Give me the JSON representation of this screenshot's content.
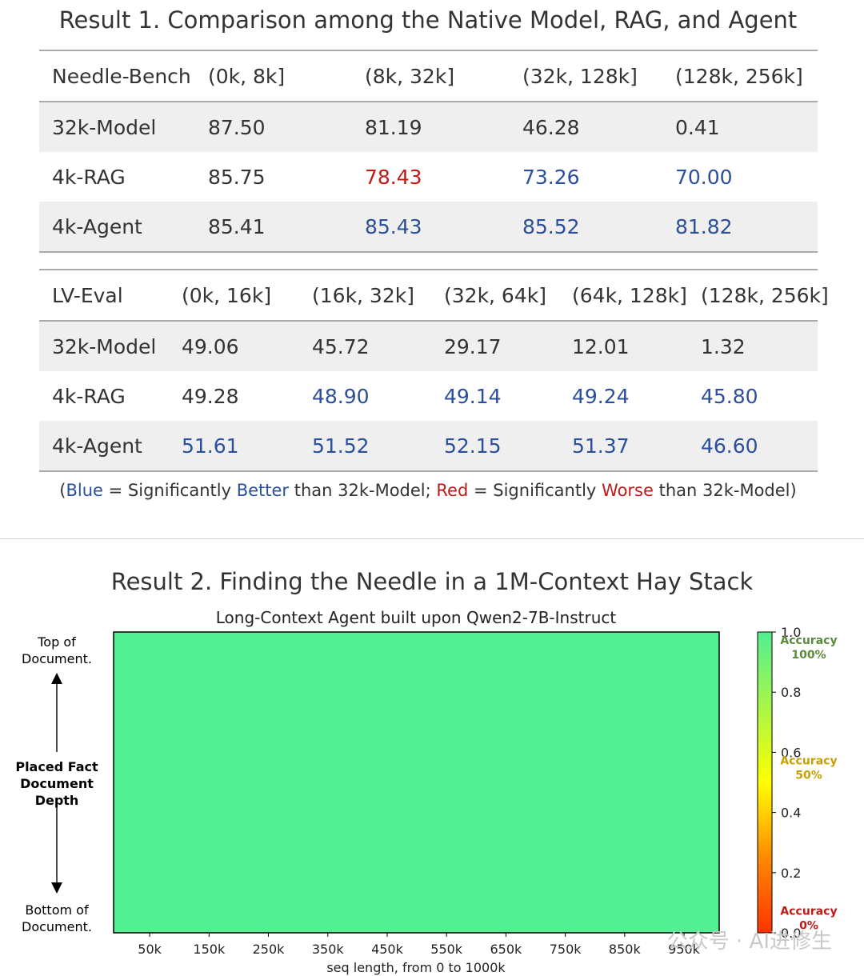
{
  "result1": {
    "title": "Result 1. Comparison among the Native Model, RAG, and Agent",
    "needle_bench": {
      "headers": [
        "Needle-Bench",
        "(0k, 8k]",
        "(8k, 32k]",
        "(32k, 128k]",
        "(128k, 256k]"
      ],
      "rows": [
        {
          "label": "32k-Model",
          "values": [
            "87.50",
            "81.19",
            "46.28",
            "0.41"
          ],
          "colors": [
            "",
            "",
            "",
            ""
          ]
        },
        {
          "label": "4k-RAG",
          "values": [
            "85.75",
            "78.43",
            "73.26",
            "70.00"
          ],
          "colors": [
            "",
            "red",
            "blue",
            "blue"
          ]
        },
        {
          "label": "4k-Agent",
          "values": [
            "85.41",
            "85.43",
            "85.52",
            "81.82"
          ],
          "colors": [
            "",
            "blue",
            "blue",
            "blue"
          ]
        }
      ]
    },
    "lv_eval": {
      "headers": [
        "LV-Eval",
        "(0k, 16k]",
        "(16k, 32k]",
        "(32k, 64k]",
        "(64k, 128k]",
        "(128k, 256k]"
      ],
      "rows": [
        {
          "label": "32k-Model",
          "values": [
            "49.06",
            "45.72",
            "29.17",
            "12.01",
            "1.32"
          ],
          "colors": [
            "",
            "",
            "",
            "",
            ""
          ]
        },
        {
          "label": "4k-RAG",
          "values": [
            "49.28",
            "48.90",
            "49.14",
            "49.24",
            "45.80"
          ],
          "colors": [
            "",
            "blue",
            "blue",
            "blue",
            "blue"
          ]
        },
        {
          "label": "4k-Agent",
          "values": [
            "51.61",
            "51.52",
            "52.15",
            "51.37",
            "46.60"
          ],
          "colors": [
            "blue",
            "blue",
            "blue",
            "blue",
            "blue"
          ]
        }
      ]
    },
    "legend": {
      "open": "(",
      "blue_word": "Blue",
      "eq1": " = Significantly ",
      "better": "Better",
      "than1": " than 32k-Model; ",
      "red_word": "Red",
      "eq2": " = Significantly ",
      "worse": "Worse",
      "than2": " than 32k-Model)"
    },
    "colors": {
      "blue": "#2b4f9b",
      "red": "#c11818"
    }
  },
  "result2": {
    "title": "Result 2. Finding the Needle in a 1M-Context Hay Stack",
    "chart_data": {
      "type": "heatmap",
      "title": "Long-Context Agent built upon Qwen2-7B-Instruct",
      "xlabel": "seq length, from 0 to 1000k",
      "x_ticks": [
        "50k",
        "150k",
        "250k",
        "350k",
        "450k",
        "550k",
        "650k",
        "750k",
        "850k",
        "950k"
      ],
      "y_label_lines": [
        "Placed Fact",
        "Document",
        "Depth"
      ],
      "y_top_lines": [
        "Top of",
        "Document."
      ],
      "y_bottom_lines": [
        "Bottom of",
        "Document."
      ],
      "values": [
        [
          1.0
        ]
      ],
      "cell_color": "#52ef93",
      "colorbar": {
        "ticks": [
          "1.0",
          "0.8",
          "0.6",
          "0.4",
          "0.2",
          "0.0"
        ],
        "range": [
          0,
          1
        ],
        "annotations": [
          {
            "lines": [
              "Accuracy",
              "100%"
            ],
            "value": 0.96,
            "color": "#5a8a3a"
          },
          {
            "lines": [
              "Accuracy",
              "50%"
            ],
            "value": 0.56,
            "color": "#c9a000"
          },
          {
            "lines": [
              "Accuracy",
              "0%"
            ],
            "value": 0.06,
            "color": "#c11818"
          }
        ],
        "colors": [
          "#ff3300",
          "#ff8a00",
          "#ffff00",
          "#52ef93"
        ]
      }
    }
  },
  "watermark": "公众号 · AI进修生"
}
